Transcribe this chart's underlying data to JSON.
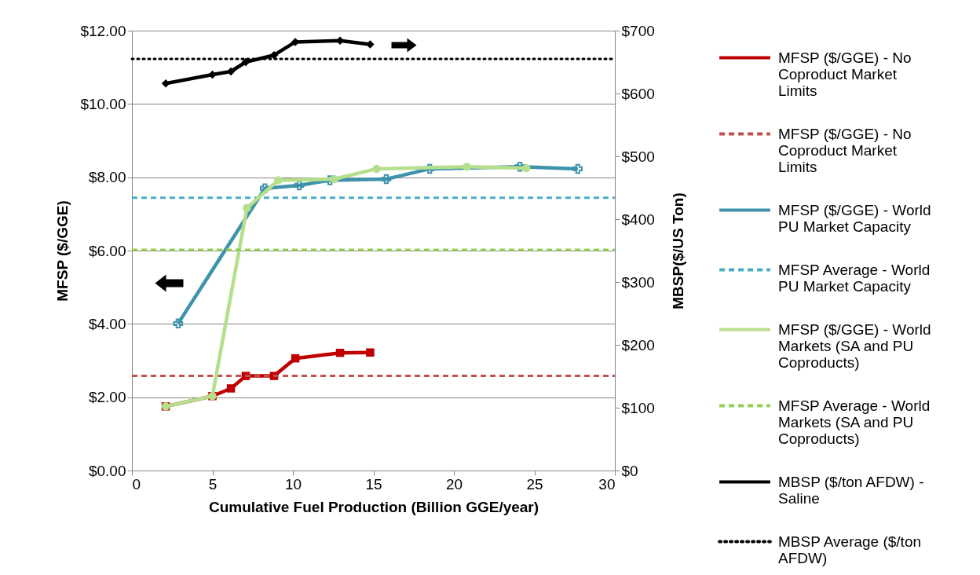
{
  "chart_data": {
    "type": "line",
    "xlabel": "Cumulative Fuel Production (Billion GGE/year)",
    "ylabel": "MFSP ($/GGE)",
    "y2label": "MBSP($/US Ton)",
    "xlim": [
      0,
      30
    ],
    "xticks": [
      0,
      5,
      10,
      15,
      20,
      25,
      30
    ],
    "ylim": [
      0,
      12
    ],
    "yticks": [
      {
        "value": 0,
        "label": "$0.00"
      },
      {
        "value": 2,
        "label": "$2.00"
      },
      {
        "value": 4,
        "label": "$4.00"
      },
      {
        "value": 6,
        "label": "$6.00"
      },
      {
        "value": 8,
        "label": "$8.00"
      },
      {
        "value": 10,
        "label": "$10.00"
      },
      {
        "value": 12,
        "label": "$12.00"
      }
    ],
    "y2lim": [
      0,
      700
    ],
    "y2ticks": [
      {
        "value": 0,
        "label": "$0"
      },
      {
        "value": 100,
        "label": "$100"
      },
      {
        "value": 200,
        "label": "$200"
      },
      {
        "value": 300,
        "label": "$300"
      },
      {
        "value": 400,
        "label": "$400"
      },
      {
        "value": 500,
        "label": "$500"
      },
      {
        "value": 600,
        "label": "$600"
      },
      {
        "value": 700,
        "label": "$700"
      }
    ],
    "grid": "y",
    "legend": "right",
    "series": [
      {
        "name": "MFSP ($/GGE) - No Coproduct Market Limits",
        "color": "#c00000",
        "marker": "square",
        "line_style": "solid",
        "x": [
          2.1,
          5.0,
          6.15,
          7.07,
          8.83,
          10.15,
          12.93,
          14.8
        ],
        "values": [
          1.75,
          2.03,
          2.24,
          2.58,
          2.58,
          3.06,
          3.21,
          3.22
        ]
      },
      {
        "name": "MFSP ($/GGE) - No Coproduct Market Limits",
        "color": "#c0504d",
        "marker": "none",
        "line_style": "dashed",
        "x": [
          0,
          30
        ],
        "values": [
          2.58,
          2.58
        ]
      },
      {
        "name": "MFSP ($/GGE) - World PU Market Capacity",
        "color": "#3e93ab",
        "marker": "cross",
        "line_style": "solid",
        "x": [
          2.87,
          8.26,
          10.4,
          12.3,
          15.8,
          18.5,
          24.1,
          27.7
        ],
        "values": [
          4.01,
          7.7,
          7.78,
          7.92,
          7.95,
          8.23,
          8.29,
          8.23
        ]
      },
      {
        "name": "MFSP Average - World PU Market Capacity",
        "color": "#4bacc6",
        "marker": "none",
        "line_style": "dashed",
        "x": [
          0,
          30
        ],
        "values": [
          7.44,
          7.44
        ]
      },
      {
        "name": "MFSP ($/GGE) - World Markets (SA and PU Coproducts)",
        "color": "#b5df8c",
        "marker": "circle",
        "line_style": "solid",
        "x": [
          2.1,
          5.0,
          7.14,
          9.09,
          12.57,
          15.2,
          20.8,
          24.5
        ],
        "values": [
          1.75,
          2.03,
          7.16,
          7.92,
          7.95,
          8.23,
          8.29,
          8.25
        ]
      },
      {
        "name": "MFSP Average - World Markets (SA and PU Coproducts)",
        "color": "#92d050",
        "marker": "none",
        "line_style": "dashed",
        "x": [
          0,
          30
        ],
        "values": [
          6.02,
          6.02
        ]
      },
      {
        "name": "MBSP ($/ton AFDW) - Saline",
        "color": "#000000",
        "marker": "diamond",
        "line_style": "solid",
        "axis": "y2",
        "x": [
          2.1,
          5.0,
          6.15,
          7.07,
          8.83,
          10.15,
          12.93,
          14.8
        ],
        "values": [
          616,
          630,
          635,
          650,
          661,
          682,
          684,
          678
        ]
      },
      {
        "name": "MBSP Average ($/ton AFDW)",
        "color": "#000000",
        "marker": "none",
        "line_style": "dotted",
        "axis": "y2",
        "x": [
          0,
          30
        ],
        "values": [
          655,
          655
        ]
      }
    ]
  }
}
